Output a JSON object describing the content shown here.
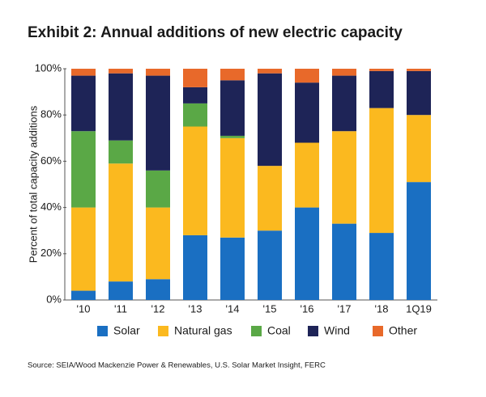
{
  "chart_data": {
    "type": "stacked-bar",
    "title": "Exhibit 2: Annual additions of new electric capacity",
    "y_label": "Percent of total capacity additions",
    "source": "Source: SEIA/Wood Mackenzie Power & Renewables, U.S. Solar Market Insight, FERC",
    "categories": [
      "'10",
      "'11",
      "'12",
      "'13",
      "'14",
      "'15",
      "'16",
      "'17",
      "'18",
      "1Q19"
    ],
    "series": [
      {
        "name": "Solar",
        "color": "#1a6fc2",
        "values": [
          4,
          8,
          9,
          28,
          27,
          30,
          40,
          33,
          29,
          51
        ]
      },
      {
        "name": "Natural gas",
        "color": "#fbb91f",
        "values": [
          36,
          51,
          31,
          47,
          43,
          28,
          28,
          40,
          54,
          29
        ]
      },
      {
        "name": "Coal",
        "color": "#5aa846",
        "values": [
          33,
          10,
          16,
          10,
          1,
          0,
          0,
          0,
          0,
          0
        ]
      },
      {
        "name": "Wind",
        "color": "#1e2457",
        "values": [
          24,
          29,
          41,
          7,
          24,
          40,
          26,
          24,
          16,
          19
        ]
      },
      {
        "name": "Other",
        "color": "#e8692a",
        "values": [
          3,
          2,
          3,
          8,
          5,
          2,
          6,
          3,
          1,
          1
        ]
      }
    ],
    "ylim": [
      0,
      100
    ],
    "yticks": [
      {
        "value": 0,
        "label": "0%"
      },
      {
        "value": 20,
        "label": "20%"
      },
      {
        "value": 40,
        "label": "40%"
      },
      {
        "value": 60,
        "label": "60%"
      },
      {
        "value": 80,
        "label": "80%"
      },
      {
        "value": 100,
        "label": "100%"
      }
    ]
  }
}
